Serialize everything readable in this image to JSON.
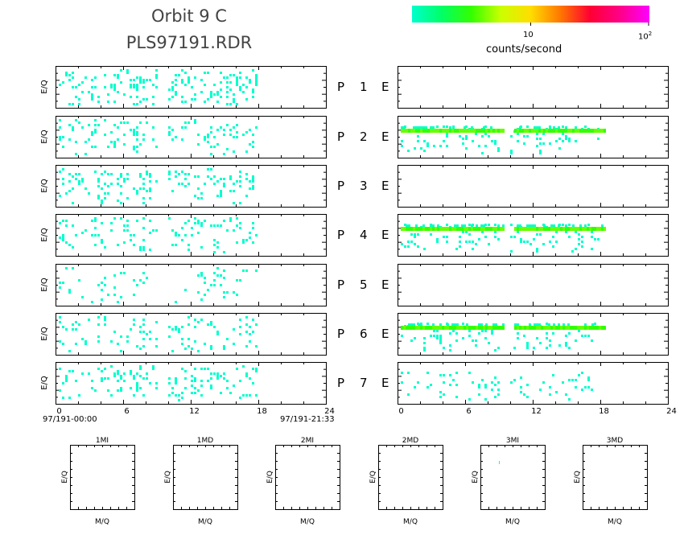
{
  "header": {
    "title_line1": "Orbit  9  C",
    "title_line2": "PLS97191.RDR"
  },
  "colorbar": {
    "label": "counts/second",
    "tick_10": "10",
    "tick_100_base": "10",
    "tick_100_exp": "2",
    "colors": [
      "#00ffcc",
      "#00ff66",
      "#33ff00",
      "#ccff00",
      "#ffdd00",
      "#ff7700",
      "#ff0033",
      "#ff0088",
      "#ff00ff"
    ]
  },
  "axis": {
    "ylabel": "E/Q",
    "xticks": [
      "0",
      "6",
      "12",
      "18",
      "24"
    ],
    "start_time": "97/191-00:00",
    "end_time": "97/191-21:33"
  },
  "rows": [
    {
      "p": "P",
      "n": "1",
      "e": "E"
    },
    {
      "p": "P",
      "n": "2",
      "e": "E"
    },
    {
      "p": "P",
      "n": "3",
      "e": "E"
    },
    {
      "p": "P",
      "n": "4",
      "e": "E"
    },
    {
      "p": "P",
      "n": "5",
      "e": "E"
    },
    {
      "p": "P",
      "n": "6",
      "e": "E"
    },
    {
      "p": "P",
      "n": "7",
      "e": "E"
    }
  ],
  "bottom_panels": {
    "titles": [
      "1MI",
      "1MD",
      "2MI",
      "2MD",
      "3MI",
      "3MD"
    ],
    "xlabel": "M/Q",
    "ylabel": "E/Q"
  },
  "chart_data": {
    "type": "heatmap",
    "x_range_hours": [
      0,
      24
    ],
    "data_extent_hours": [
      0,
      18
    ],
    "gap_hours": [
      9,
      10
    ],
    "left_column": {
      "activity": [
        0.75,
        0.45,
        0.6,
        0.45,
        0.25,
        0.4,
        0.55
      ]
    },
    "right_column": {
      "activity": [
        0,
        0.55,
        0,
        0.55,
        0,
        0.6,
        0.35
      ],
      "bright_band": [
        false,
        true,
        false,
        true,
        false,
        true,
        false
      ]
    },
    "color_scale": {
      "min": "1",
      "mid": "10",
      "max": "100",
      "log": true
    }
  }
}
